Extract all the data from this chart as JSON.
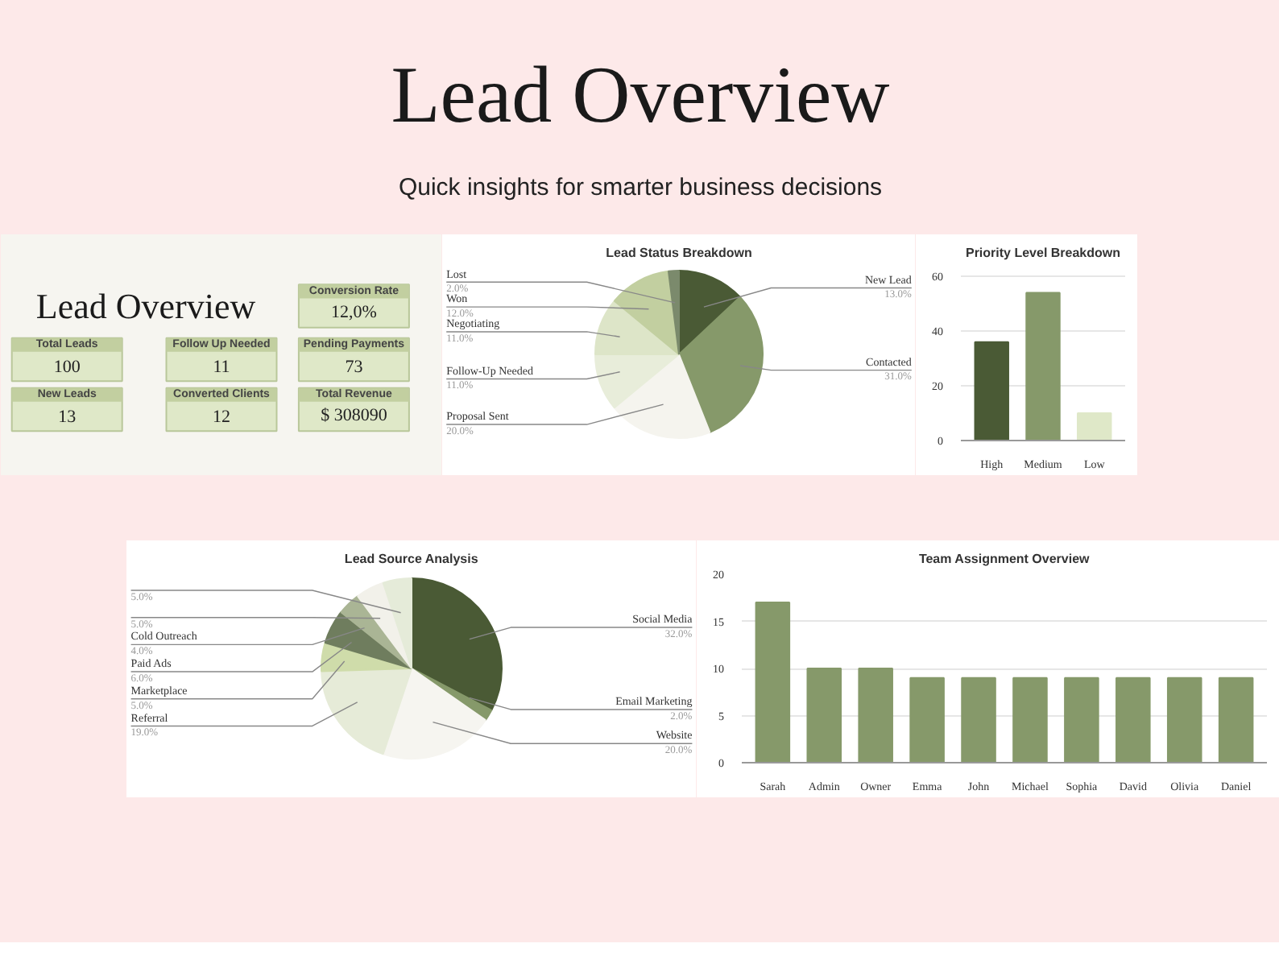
{
  "chart_data": [
    {
      "type": "other",
      "title": "Lead Overview",
      "subtitle": "Quick insights for smarter business decisions"
    },
    {
      "type": "other",
      "title": "Lead Overview",
      "annotations": [
        "Conversion Rate",
        "12,0%",
        "Total Leads",
        "100",
        "Follow Up Needed",
        "11",
        "Pending Payments",
        "73",
        "New Leads",
        "13",
        "Converted Clients",
        "12",
        "Total Revenue",
        "$ 308090"
      ]
    },
    {
      "type": "pie",
      "title": "Lead Status Breakdown",
      "categories": [
        "New Lead",
        "Contacted",
        "Proposal Sent",
        "Follow-Up Needed",
        "Negotiating",
        "Won",
        "Lost"
      ],
      "values": [
        13,
        31,
        20,
        11,
        11,
        12,
        2
      ],
      "value_labels": [
        "13.0%",
        "31.0%",
        "20.0%",
        "11.0%",
        "11.0%",
        "12.0%",
        "2.0%"
      ],
      "colors": [
        "#4a5a35",
        "#86996a",
        "#f5f4ee",
        "#e8edda",
        "#dde5c8",
        "#c2cfa0",
        "#7b8a6c"
      ]
    },
    {
      "type": "bar",
      "title": "Priority Level Breakdown",
      "categories": [
        "High",
        "Medium",
        "Low"
      ],
      "values": [
        36,
        54,
        10
      ],
      "colors": [
        "#4a5a35",
        "#86996a",
        "#dfe8c8"
      ],
      "ylim": [
        0,
        63
      ],
      "yticks": [
        0,
        20,
        40,
        60
      ],
      "grid": "y"
    },
    {
      "type": "pie",
      "title": "Lead Source Analysis",
      "categories": [
        "Social Media",
        "Email Marketing",
        "Website",
        "Referral",
        "Marketplace",
        "Paid Ads",
        "Cold Outreach",
        null,
        null
      ],
      "values": [
        32,
        2,
        20,
        19,
        5,
        6,
        4,
        5,
        5
      ],
      "value_labels": [
        "32.0%",
        "2.0%",
        "20.0%",
        "19.0%",
        "5.0%",
        "6.0%",
        "4.0%",
        "5.0%",
        "5.0%"
      ],
      "colors": [
        "#4a5a35",
        "#86996a",
        "#f6f5f0",
        "#e6ebd8",
        "#cfdcaa",
        "#6f7d5e",
        "#aab595",
        "#f2f1ea",
        "#e5ebd9"
      ]
    },
    {
      "type": "bar",
      "title": "Team Assignment Overview",
      "categories": [
        "Sarah",
        "Admin",
        "Owner",
        "Emma",
        "John",
        "Michael",
        "Sophia",
        "David",
        "Olivia",
        "Daniel"
      ],
      "values": [
        17,
        10,
        10,
        9,
        9,
        9,
        9,
        9,
        9,
        9
      ],
      "color": "#86996a",
      "ylim": [
        0,
        20
      ],
      "yticks": [
        0,
        5,
        10,
        15,
        20
      ],
      "grid": "y"
    }
  ]
}
